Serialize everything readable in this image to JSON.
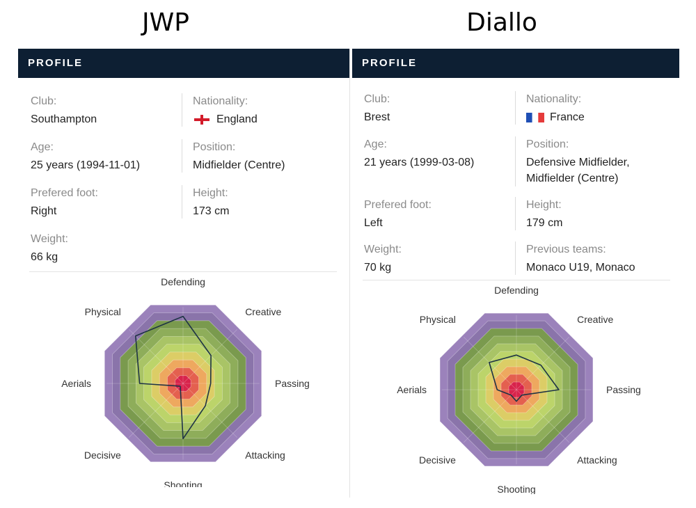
{
  "players": [
    {
      "name": "JWP",
      "header": "PROFILE",
      "club_label": "Club:",
      "club": "Southampton",
      "nationality_label": "Nationality:",
      "nationality": "England",
      "flag": "england-flag",
      "age_label": "Age:",
      "age": "25 years (1994-11-01)",
      "position_label": "Position:",
      "position": "Midfielder (Centre)",
      "foot_label": "Prefered foot:",
      "foot": "Right",
      "height_label": "Height:",
      "height": "173 cm",
      "weight_label": "Weight:",
      "weight": "66 kg"
    },
    {
      "name": "Diallo",
      "header": "PROFILE",
      "club_label": "Club:",
      "club": "Brest",
      "nationality_label": "Nationality:",
      "nationality": "France",
      "flag": "france-flag",
      "age_label": "Age:",
      "age": "21 years (1999-03-08)",
      "position_label": "Position:",
      "position_line1": "Defensive Midfielder,",
      "position_line2": "Midfielder (Centre)",
      "foot_label": "Prefered foot:",
      "foot": "Left",
      "height_label": "Height:",
      "height": "179 cm",
      "weight_label": "Weight:",
      "weight": "70 kg",
      "previous_teams_label": "Previous teams:",
      "previous_teams": "Monaco U19, Monaco"
    }
  ],
  "chart_data": [
    {
      "type": "radar",
      "player": "JWP",
      "axes": [
        "Defending",
        "Creative",
        "Passing",
        "Attacking",
        "Shooting",
        "Decisive",
        "Aerials",
        "Physical"
      ],
      "values": [
        85,
        50,
        35,
        40,
        70,
        5,
        55,
        85
      ],
      "range": [
        0,
        100
      ]
    },
    {
      "type": "radar",
      "player": "Diallo",
      "axes": [
        "Defending",
        "Creative",
        "Passing",
        "Attacking",
        "Shooting",
        "Decisive",
        "Aerials",
        "Physical"
      ],
      "values": [
        45,
        45,
        55,
        10,
        15,
        10,
        25,
        50
      ],
      "range": [
        0,
        100
      ]
    }
  ],
  "colors": {
    "header_bg": "#0d1f33",
    "line": "#1e3345",
    "rings": [
      "#d8234b",
      "#e4604f",
      "#eea85f",
      "#dccd66",
      "#bcd46a",
      "#a9c466",
      "#8ead5a",
      "#7a9a4e",
      "#8a74aa",
      "#9b82bb"
    ]
  }
}
